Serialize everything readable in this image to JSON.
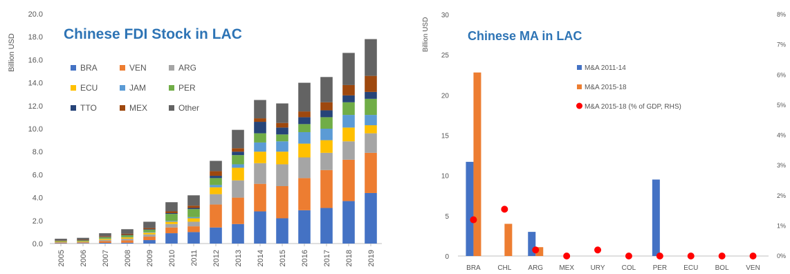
{
  "colors": {
    "BRA": "#4472c4",
    "VEN": "#ed7d31",
    "ARG": "#a5a5a5",
    "ECU": "#ffc000",
    "JAM": "#5b9bd5",
    "PER": "#70ad47",
    "TTO": "#264478",
    "MEX": "#9e480e",
    "Other": "#636363",
    "ma_2011_14": "#4472c4",
    "ma_2015_18": "#ed7d31",
    "ma_gdp": "#ff0000",
    "title": "#2e74b5"
  },
  "chart_data": [
    {
      "type": "bar",
      "stacked": true,
      "title": "Chinese FDI Stock in LAC",
      "ylabel": "Billion USD",
      "xlabel": "",
      "ylim": [
        0,
        20
      ],
      "yticks": [
        "0.0",
        "2.0",
        "4.0",
        "6.0",
        "8.0",
        "10.0",
        "12.0",
        "14.0",
        "16.0",
        "18.0",
        "20.0"
      ],
      "grid": false,
      "legend_placement": "top-left",
      "categories": [
        "2005",
        "2006",
        "2007",
        "2008",
        "2009",
        "2010",
        "2011",
        "2012",
        "2013",
        "2014",
        "2015",
        "2016",
        "2017",
        "2018",
        "2019"
      ],
      "series": [
        {
          "name": "BRA",
          "values": [
            0.03,
            0.04,
            0.06,
            0.07,
            0.3,
            0.9,
            1.0,
            1.4,
            1.7,
            2.8,
            2.2,
            2.9,
            3.1,
            3.7,
            4.4
          ]
        },
        {
          "name": "VEN",
          "values": [
            0.05,
            0.06,
            0.15,
            0.2,
            0.3,
            0.5,
            0.5,
            2.0,
            2.3,
            2.4,
            2.8,
            2.8,
            3.3,
            3.6,
            3.5
          ]
        },
        {
          "name": "ARG",
          "values": [
            0.04,
            0.05,
            0.1,
            0.15,
            0.2,
            0.3,
            0.4,
            0.9,
            1.5,
            1.8,
            1.9,
            1.8,
            1.5,
            1.6,
            1.7
          ]
        },
        {
          "name": "ECU",
          "values": [
            0.05,
            0.05,
            0.1,
            0.12,
            0.15,
            0.2,
            0.3,
            0.6,
            1.1,
            1.0,
            1.1,
            1.2,
            1.1,
            1.2,
            0.7
          ]
        },
        {
          "name": "JAM",
          "values": [
            0.0,
            0.0,
            0.02,
            0.03,
            0.05,
            0.08,
            0.1,
            0.2,
            0.3,
            0.8,
            0.9,
            1.0,
            1.0,
            1.1,
            0.9
          ]
        },
        {
          "name": "PER",
          "values": [
            0.06,
            0.07,
            0.12,
            0.15,
            0.2,
            0.6,
            0.7,
            0.6,
            0.8,
            0.8,
            0.6,
            0.7,
            1.0,
            1.1,
            1.4
          ]
        },
        {
          "name": "TTO",
          "values": [
            0.02,
            0.02,
            0.03,
            0.04,
            0.05,
            0.07,
            0.1,
            0.2,
            0.3,
            1.0,
            0.6,
            0.6,
            0.6,
            0.6,
            0.6
          ]
        },
        {
          "name": "MEX",
          "values": [
            0.03,
            0.04,
            0.07,
            0.09,
            0.1,
            0.15,
            0.2,
            0.4,
            0.3,
            0.3,
            0.4,
            0.5,
            0.7,
            0.9,
            1.4
          ]
        },
        {
          "name": "Other",
          "values": [
            0.14,
            0.17,
            0.25,
            0.4,
            0.55,
            0.8,
            0.9,
            0.9,
            1.6,
            1.6,
            1.7,
            2.5,
            2.2,
            2.8,
            3.2
          ]
        }
      ],
      "legend": [
        [
          "BRA",
          "VEN",
          "ARG"
        ],
        [
          "ECU",
          "JAM",
          "PER"
        ],
        [
          "TTO",
          "MEX",
          "Other"
        ]
      ]
    },
    {
      "type": "bar",
      "title": "Chinese MA in LAC",
      "ylabel": "Billion USD",
      "xlabel": "",
      "ylim": [
        0,
        30
      ],
      "yticks": [
        "0",
        "5",
        "10",
        "15",
        "20",
        "25",
        "30"
      ],
      "y2lim": [
        0,
        8
      ],
      "y2ticks": [
        "0%",
        "1%",
        "2%",
        "3%",
        "4%",
        "5%",
        "6%",
        "7%",
        "8%"
      ],
      "grid": false,
      "legend_placement": "top-center",
      "categories": [
        "BRA",
        "CHL",
        "ARG",
        "MEX",
        "URY",
        "COL",
        "PER",
        "ECU",
        "BOL",
        "VEN"
      ],
      "series": [
        {
          "name": "M&A 2011-14",
          "kind": "bar",
          "values": [
            11.7,
            0,
            3.0,
            0,
            0,
            0,
            9.5,
            0,
            0,
            0
          ]
        },
        {
          "name": "M&A 2015-18",
          "kind": "bar",
          "values": [
            22.8,
            4.0,
            1.1,
            0,
            0,
            0,
            0,
            0,
            0,
            0
          ]
        },
        {
          "name": "M&A 2015-18 (% of GDP, RHS)",
          "kind": "scatter",
          "axis": "right",
          "values": [
            1.2,
            1.55,
            0.2,
            0.0,
            0.2,
            0.0,
            0.0,
            0.0,
            0.0,
            0.0
          ]
        }
      ]
    }
  ]
}
